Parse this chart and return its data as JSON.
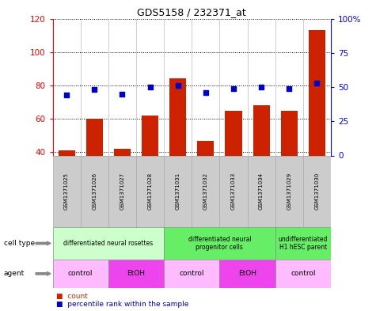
{
  "title": "GDS5158 / 232371_at",
  "samples": [
    "GSM1371025",
    "GSM1371026",
    "GSM1371027",
    "GSM1371028",
    "GSM1371031",
    "GSM1371032",
    "GSM1371033",
    "GSM1371034",
    "GSM1371029",
    "GSM1371030"
  ],
  "counts": [
    41,
    60,
    42,
    62,
    84,
    47,
    65,
    68,
    65,
    113
  ],
  "percentiles": [
    44,
    48,
    45,
    50,
    51,
    46,
    49,
    50,
    49,
    53
  ],
  "ylim_left": [
    38,
    120
  ],
  "ylim_right": [
    0,
    100
  ],
  "yticks_left": [
    40,
    60,
    80,
    100,
    120
  ],
  "yticks_right": [
    0,
    25,
    50,
    75,
    100
  ],
  "ytick_labels_right": [
    "0",
    "25",
    "50",
    "75",
    "100%"
  ],
  "bar_color": "#cc2200",
  "dot_color": "#0000cc",
  "cell_type_groups": [
    {
      "label": "differentiated neural rosettes",
      "start": 0,
      "end": 4,
      "color": "#ccffcc"
    },
    {
      "label": "differentiated neural\nprogenitor cells",
      "start": 4,
      "end": 8,
      "color": "#66ee66"
    },
    {
      "label": "undifferentiated\nH1 hESC parent",
      "start": 8,
      "end": 10,
      "color": "#66ee66"
    }
  ],
  "agent_groups": [
    {
      "label": "control",
      "start": 0,
      "end": 2,
      "color": "#ffbbff"
    },
    {
      "label": "EtOH",
      "start": 2,
      "end": 4,
      "color": "#ee44ee"
    },
    {
      "label": "control",
      "start": 4,
      "end": 6,
      "color": "#ffbbff"
    },
    {
      "label": "EtOH",
      "start": 6,
      "end": 8,
      "color": "#ee44ee"
    },
    {
      "label": "control",
      "start": 8,
      "end": 10,
      "color": "#ffbbff"
    }
  ],
  "sample_bg_color": "#cccccc",
  "bar_bottom": 38
}
